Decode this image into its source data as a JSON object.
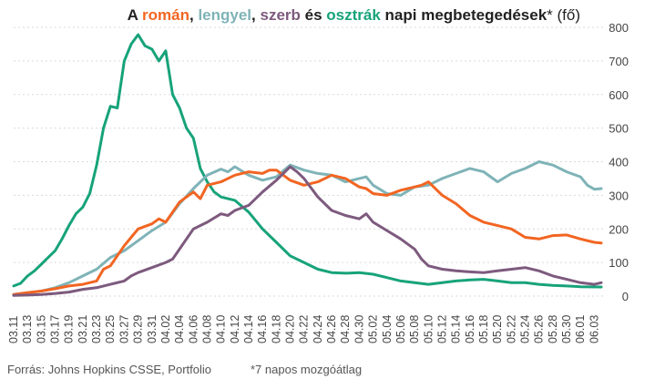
{
  "chart_data": {
    "type": "line",
    "title_parts": [
      {
        "text": "A ",
        "color": "#222222"
      },
      {
        "text": "román",
        "color": "#f26522"
      },
      {
        "text": ", ",
        "color": "#222222"
      },
      {
        "text": "lengyel",
        "color": "#7fb3b7"
      },
      {
        "text": ", ",
        "color": "#222222"
      },
      {
        "text": "szerb",
        "color": "#7d5a7e"
      },
      {
        "text": " és ",
        "color": "#222222"
      },
      {
        "text": "osztrák",
        "color": "#17a37a"
      },
      {
        "text": " napi megbetegedések",
        "color": "#222222"
      },
      {
        "text": "* (fő)",
        "color": "#222222",
        "light": true
      }
    ],
    "ylim": [
      0,
      800
    ],
    "yticks": [
      0,
      100,
      200,
      300,
      400,
      500,
      600,
      700,
      800
    ],
    "x_start": "03.11",
    "x_end": "06.04",
    "xticks": [
      "03.11",
      "03.13",
      "03.15",
      "03.17",
      "03.19",
      "03.21",
      "03.23",
      "03.25",
      "03.27",
      "03.29",
      "03.31",
      "04.02",
      "04.04",
      "04.06",
      "04.08",
      "04.10",
      "04.12",
      "04.14",
      "04.16",
      "04.18",
      "04.20",
      "04.22",
      "04.24",
      "04.26",
      "04.28",
      "04.30",
      "05.02",
      "05.04",
      "05.06",
      "05.08",
      "05.10",
      "05.12",
      "05.14",
      "05.16",
      "05.18",
      "05.20",
      "05.22",
      "05.24",
      "05.26",
      "05.28",
      "05.30",
      "06.01",
      "06.03"
    ],
    "series": [
      {
        "key": "austria",
        "color": "#17a37a",
        "points": [
          [
            "03.11",
            30
          ],
          [
            "03.12",
            38
          ],
          [
            "03.13",
            60
          ],
          [
            "03.14",
            75
          ],
          [
            "03.15",
            95
          ],
          [
            "03.16",
            115
          ],
          [
            "03.17",
            135
          ],
          [
            "03.18",
            170
          ],
          [
            "03.19",
            210
          ],
          [
            "03.20",
            245
          ],
          [
            "03.21",
            265
          ],
          [
            "03.22",
            305
          ],
          [
            "03.23",
            390
          ],
          [
            "03.24",
            500
          ],
          [
            "03.25",
            565
          ],
          [
            "03.26",
            560
          ],
          [
            "03.27",
            700
          ],
          [
            "03.28",
            750
          ],
          [
            "03.29",
            778
          ],
          [
            "03.30",
            745
          ],
          [
            "03.31",
            735
          ],
          [
            "04.01",
            700
          ],
          [
            "04.02",
            730
          ],
          [
            "04.03",
            600
          ],
          [
            "04.04",
            560
          ],
          [
            "04.05",
            500
          ],
          [
            "04.06",
            470
          ],
          [
            "04.07",
            380
          ],
          [
            "04.08",
            340
          ],
          [
            "04.09",
            310
          ],
          [
            "04.10",
            295
          ],
          [
            "04.11",
            290
          ],
          [
            "04.12",
            285
          ],
          [
            "04.14",
            250
          ],
          [
            "04.16",
            200
          ],
          [
            "04.18",
            160
          ],
          [
            "04.20",
            120
          ],
          [
            "04.22",
            100
          ],
          [
            "04.24",
            80
          ],
          [
            "04.26",
            70
          ],
          [
            "04.28",
            68
          ],
          [
            "04.30",
            70
          ],
          [
            "05.02",
            65
          ],
          [
            "05.04",
            55
          ],
          [
            "05.06",
            45
          ],
          [
            "05.08",
            40
          ],
          [
            "05.10",
            35
          ],
          [
            "05.12",
            40
          ],
          [
            "05.14",
            45
          ],
          [
            "05.16",
            48
          ],
          [
            "05.18",
            50
          ],
          [
            "05.20",
            45
          ],
          [
            "05.22",
            40
          ],
          [
            "05.24",
            40
          ],
          [
            "05.26",
            35
          ],
          [
            "05.28",
            32
          ],
          [
            "05.30",
            30
          ],
          [
            "06.01",
            28
          ],
          [
            "06.04",
            27
          ]
        ]
      },
      {
        "key": "poland",
        "color": "#7fb3b7",
        "points": [
          [
            "03.11",
            5
          ],
          [
            "03.13",
            10
          ],
          [
            "03.15",
            15
          ],
          [
            "03.17",
            25
          ],
          [
            "03.19",
            40
          ],
          [
            "03.21",
            60
          ],
          [
            "03.23",
            80
          ],
          [
            "03.25",
            115
          ],
          [
            "03.27",
            135
          ],
          [
            "03.29",
            165
          ],
          [
            "03.31",
            195
          ],
          [
            "04.02",
            220
          ],
          [
            "04.04",
            275
          ],
          [
            "04.06",
            320
          ],
          [
            "04.08",
            360
          ],
          [
            "04.10",
            378
          ],
          [
            "04.11",
            370
          ],
          [
            "04.12",
            385
          ],
          [
            "04.14",
            360
          ],
          [
            "04.16",
            345
          ],
          [
            "04.18",
            355
          ],
          [
            "04.20",
            390
          ],
          [
            "04.22",
            375
          ],
          [
            "04.24",
            365
          ],
          [
            "04.26",
            360
          ],
          [
            "04.28",
            340
          ],
          [
            "04.30",
            350
          ],
          [
            "05.01",
            355
          ],
          [
            "05.02",
            330
          ],
          [
            "05.04",
            305
          ],
          [
            "05.06",
            300
          ],
          [
            "05.08",
            325
          ],
          [
            "05.10",
            330
          ],
          [
            "05.12",
            350
          ],
          [
            "05.14",
            365
          ],
          [
            "05.16",
            380
          ],
          [
            "05.18",
            370
          ],
          [
            "05.20",
            340
          ],
          [
            "05.22",
            365
          ],
          [
            "05.24",
            380
          ],
          [
            "05.26",
            400
          ],
          [
            "05.28",
            390
          ],
          [
            "05.30",
            370
          ],
          [
            "06.01",
            355
          ],
          [
            "06.02",
            330
          ],
          [
            "06.03",
            318
          ],
          [
            "06.04",
            320
          ]
        ]
      },
      {
        "key": "romania",
        "color": "#f26522",
        "points": [
          [
            "03.11",
            5
          ],
          [
            "03.13",
            10
          ],
          [
            "03.15",
            15
          ],
          [
            "03.17",
            22
          ],
          [
            "03.19",
            30
          ],
          [
            "03.21",
            35
          ],
          [
            "03.23",
            45
          ],
          [
            "03.24",
            80
          ],
          [
            "03.25",
            90
          ],
          [
            "03.27",
            150
          ],
          [
            "03.29",
            200
          ],
          [
            "03.31",
            215
          ],
          [
            "04.01",
            230
          ],
          [
            "04.02",
            220
          ],
          [
            "04.04",
            280
          ],
          [
            "04.05",
            295
          ],
          [
            "04.06",
            310
          ],
          [
            "04.07",
            290
          ],
          [
            "04.08",
            330
          ],
          [
            "04.10",
            340
          ],
          [
            "04.12",
            360
          ],
          [
            "04.14",
            370
          ],
          [
            "04.16",
            365
          ],
          [
            "04.17",
            375
          ],
          [
            "04.18",
            375
          ],
          [
            "04.20",
            345
          ],
          [
            "04.22",
            330
          ],
          [
            "04.24",
            340
          ],
          [
            "04.26",
            360
          ],
          [
            "04.28",
            350
          ],
          [
            "04.30",
            325
          ],
          [
            "05.01",
            320
          ],
          [
            "05.02",
            305
          ],
          [
            "05.04",
            300
          ],
          [
            "05.06",
            315
          ],
          [
            "05.08",
            325
          ],
          [
            "05.09",
            330
          ],
          [
            "05.10",
            340
          ],
          [
            "05.12",
            300
          ],
          [
            "05.14",
            275
          ],
          [
            "05.16",
            240
          ],
          [
            "05.18",
            220
          ],
          [
            "05.20",
            210
          ],
          [
            "05.22",
            200
          ],
          [
            "05.24",
            175
          ],
          [
            "05.26",
            170
          ],
          [
            "05.28",
            180
          ],
          [
            "05.30",
            182
          ],
          [
            "06.01",
            170
          ],
          [
            "06.03",
            160
          ],
          [
            "06.04",
            158
          ]
        ]
      },
      {
        "key": "serbia",
        "color": "#7d5a7e",
        "points": [
          [
            "03.11",
            2
          ],
          [
            "03.13",
            3
          ],
          [
            "03.15",
            5
          ],
          [
            "03.17",
            8
          ],
          [
            "03.19",
            12
          ],
          [
            "03.21",
            20
          ],
          [
            "03.23",
            25
          ],
          [
            "03.25",
            35
          ],
          [
            "03.27",
            45
          ],
          [
            "03.28",
            60
          ],
          [
            "03.29",
            70
          ],
          [
            "03.31",
            85
          ],
          [
            "04.02",
            100
          ],
          [
            "04.03",
            110
          ],
          [
            "04.04",
            140
          ],
          [
            "04.06",
            200
          ],
          [
            "04.08",
            220
          ],
          [
            "04.10",
            245
          ],
          [
            "04.11",
            240
          ],
          [
            "04.12",
            255
          ],
          [
            "04.14",
            270
          ],
          [
            "04.16",
            310
          ],
          [
            "04.18",
            345
          ],
          [
            "04.20",
            385
          ],
          [
            "04.21",
            370
          ],
          [
            "04.22",
            350
          ],
          [
            "04.24",
            295
          ],
          [
            "04.26",
            255
          ],
          [
            "04.28",
            240
          ],
          [
            "04.30",
            230
          ],
          [
            "05.01",
            245
          ],
          [
            "05.02",
            220
          ],
          [
            "05.04",
            195
          ],
          [
            "05.06",
            170
          ],
          [
            "05.08",
            140
          ],
          [
            "05.09",
            110
          ],
          [
            "05.10",
            90
          ],
          [
            "05.12",
            80
          ],
          [
            "05.14",
            75
          ],
          [
            "05.16",
            72
          ],
          [
            "05.18",
            70
          ],
          [
            "05.20",
            75
          ],
          [
            "05.22",
            80
          ],
          [
            "05.24",
            85
          ],
          [
            "05.26",
            75
          ],
          [
            "05.28",
            60
          ],
          [
            "05.30",
            50
          ],
          [
            "06.01",
            40
          ],
          [
            "06.03",
            35
          ],
          [
            "06.04",
            40
          ]
        ]
      }
    ],
    "grid": true,
    "y_axis_side": "right"
  },
  "footer": {
    "source": "Forrás: Johns Hopkins CSSE, Portfolio",
    "note": "*7 napos mozgóátlag"
  }
}
